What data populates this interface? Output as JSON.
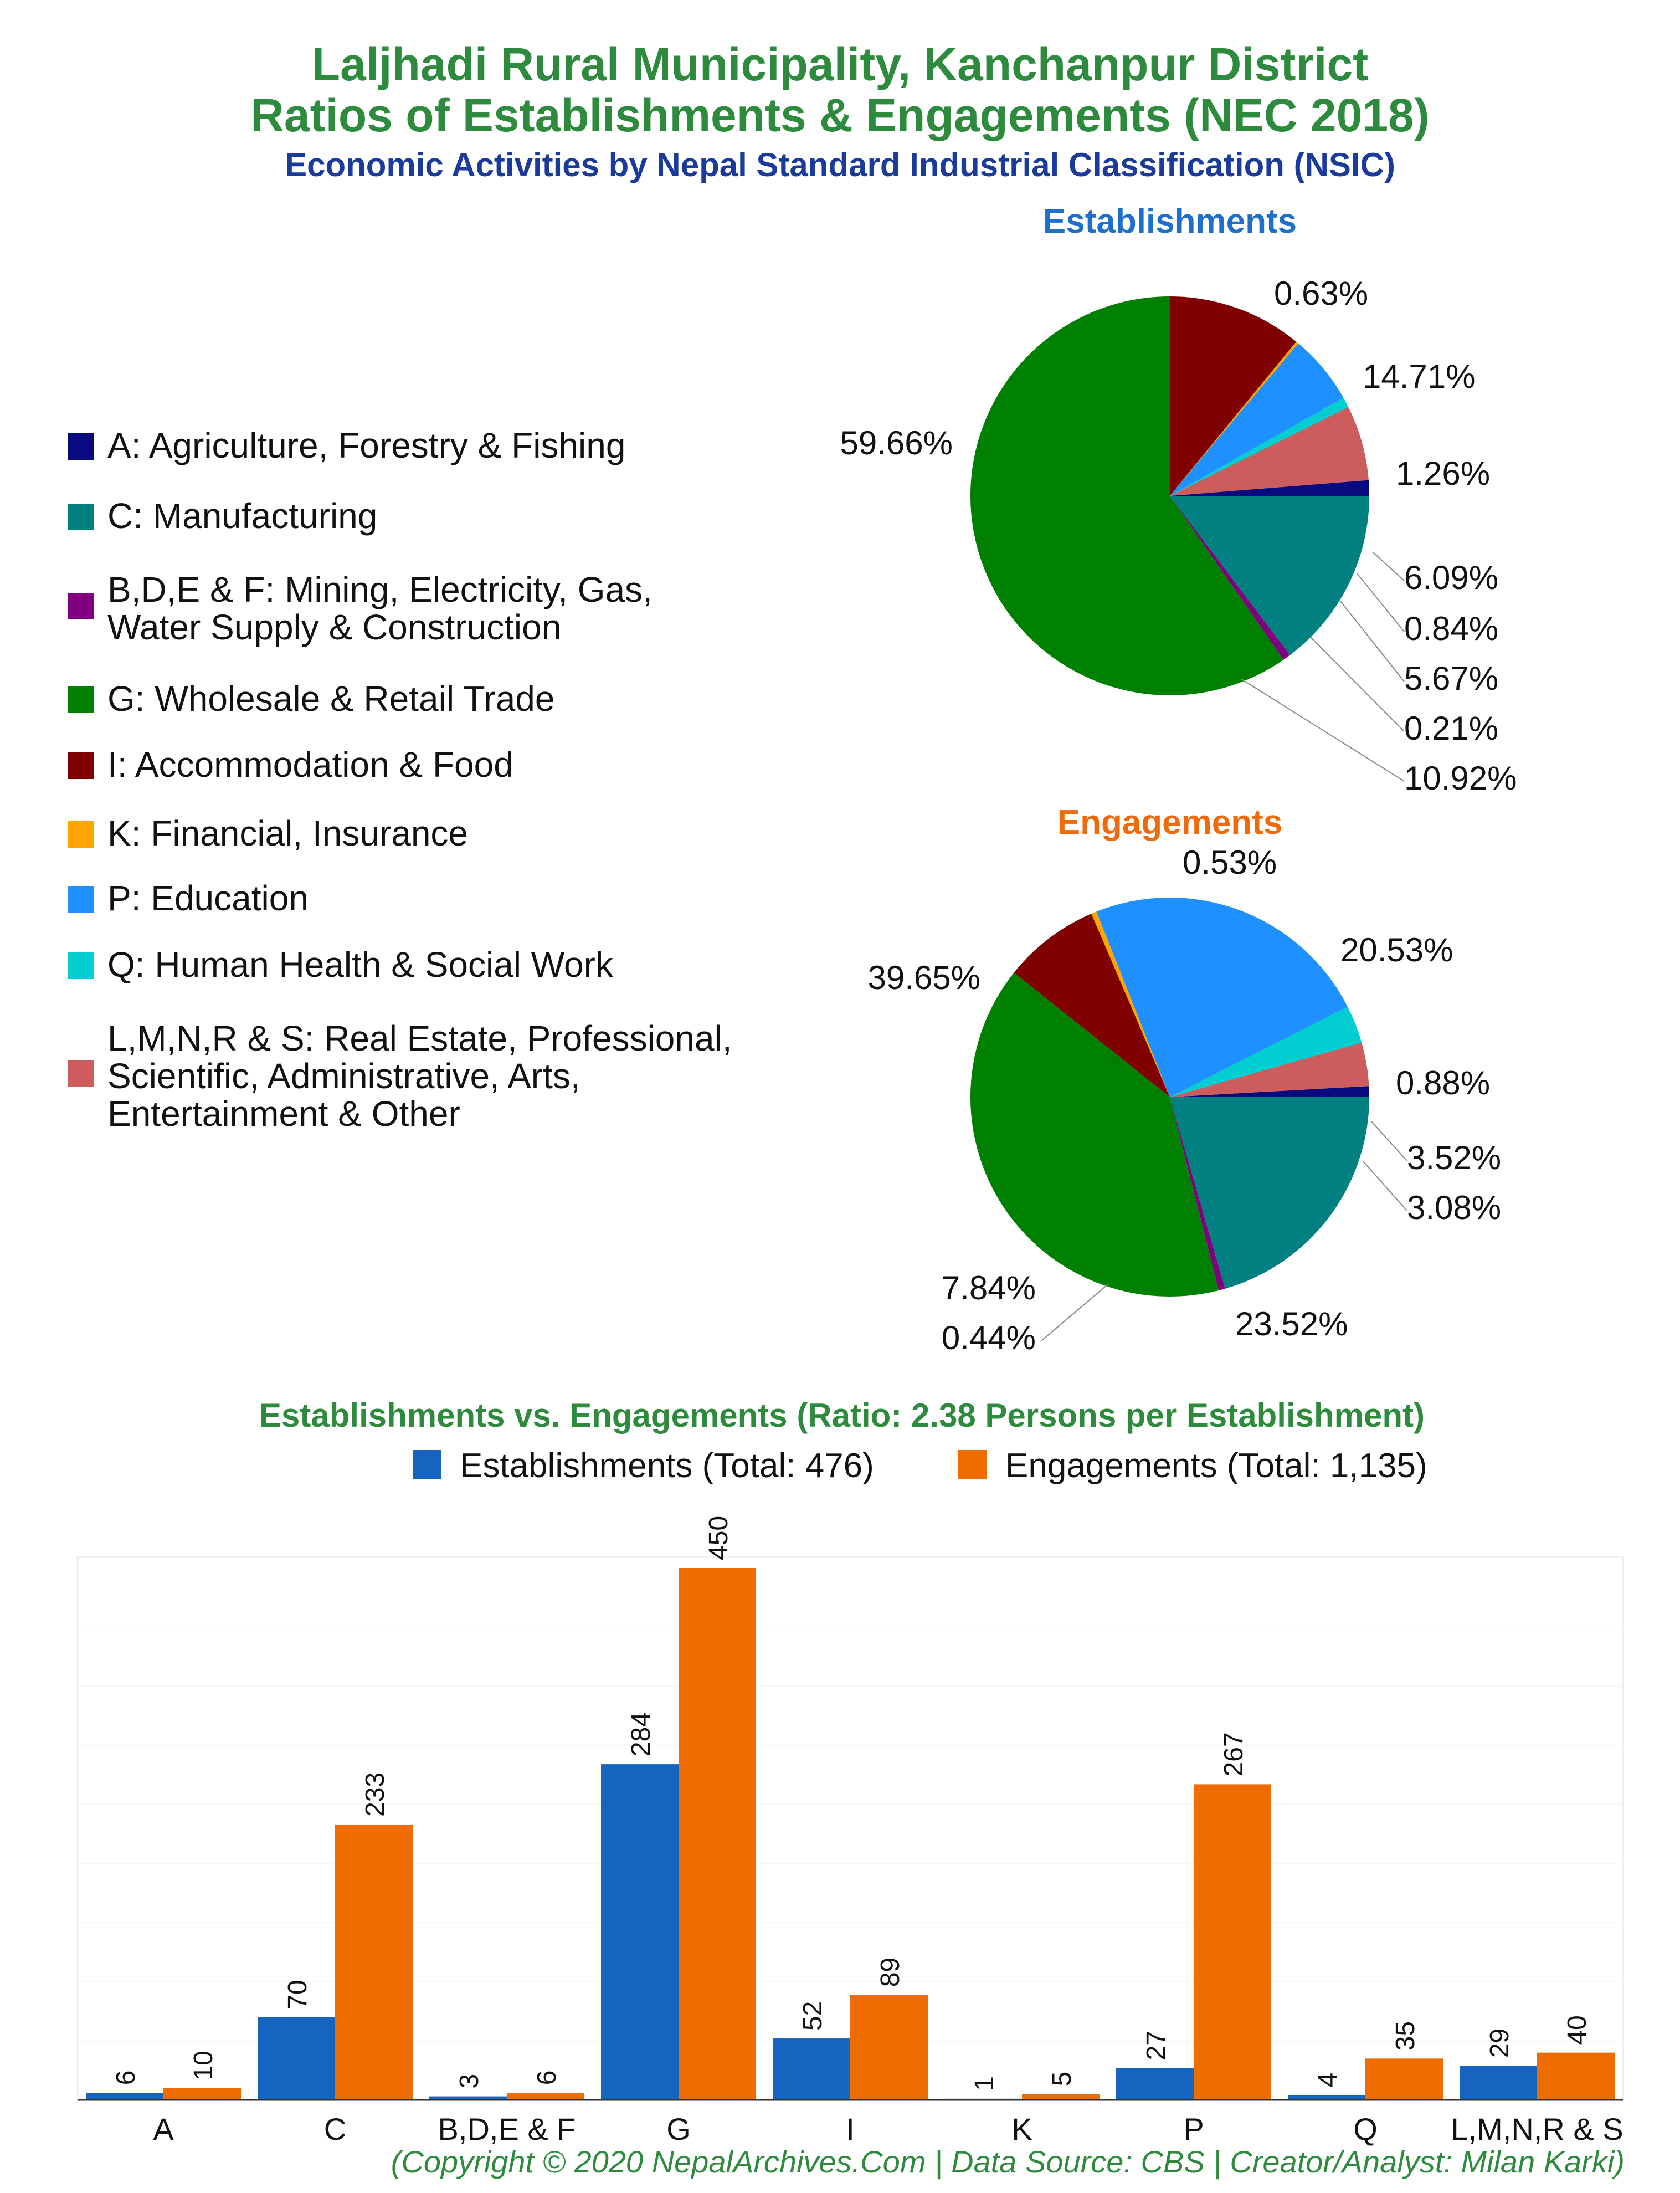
{
  "header": {
    "title_line1": "Laljhadi Rural Municipality, Kanchanpur District",
    "title_line2": "Ratios of Establishments & Engagements (NEC 2018)",
    "subtitle": "Economic Activities by Nepal Standard Industrial Classification (NSIC)"
  },
  "legend": [
    {
      "label": "A: Agriculture, Forestry & Fishing",
      "color": "#0a0a80"
    },
    {
      "label": "C: Manufacturing",
      "color": "#008080"
    },
    {
      "label": "B,D,E & F: Mining, Electricity, Gas,\nWater Supply & Construction",
      "color": "#800080"
    },
    {
      "label": "G: Wholesale & Retail Trade",
      "color": "#008000"
    },
    {
      "label": "I: Accommodation & Food",
      "color": "#800000"
    },
    {
      "label": "K: Financial, Insurance",
      "color": "#ffa500"
    },
    {
      "label": "P: Education",
      "color": "#1e90ff"
    },
    {
      "label": "Q: Human Health & Social Work",
      "color": "#00ced1"
    },
    {
      "label": "L,M,N,R & S: Real Estate, Professional,\nScientific, Administrative, Arts,\nEntertainment & Other",
      "color": "#cd5c5c"
    }
  ],
  "chart_data": [
    {
      "type": "pie",
      "title": "Establishments",
      "title_color": "#1e6fcc",
      "slices": [
        {
          "category": "A",
          "value": 1.26,
          "label": "1.26%"
        },
        {
          "category": "L,M,N,R & S",
          "value": 6.09,
          "label": "6.09%"
        },
        {
          "category": "Q",
          "value": 0.84,
          "label": "0.84%"
        },
        {
          "category": "P",
          "value": 5.67,
          "label": "5.67%"
        },
        {
          "category": "K",
          "value": 0.21,
          "label": "0.21%"
        },
        {
          "category": "I",
          "value": 10.92,
          "label": "10.92%"
        },
        {
          "category": "G",
          "value": 59.66,
          "label": "59.66%"
        },
        {
          "category": "B,D,E & F",
          "value": 0.63,
          "label": "0.63%"
        },
        {
          "category": "C",
          "value": 14.71,
          "label": "14.71%"
        }
      ]
    },
    {
      "type": "pie",
      "title": "Engagements",
      "title_color": "#ee6a0a",
      "slices": [
        {
          "category": "A",
          "value": 0.88,
          "label": "0.88%"
        },
        {
          "category": "L,M,N,R & S",
          "value": 3.52,
          "label": "3.52%"
        },
        {
          "category": "Q",
          "value": 3.08,
          "label": "3.08%"
        },
        {
          "category": "P",
          "value": 23.52,
          "label": "23.52%"
        },
        {
          "category": "K",
          "value": 0.44,
          "label": "0.44%"
        },
        {
          "category": "I",
          "value": 7.84,
          "label": "7.84%"
        },
        {
          "category": "G",
          "value": 39.65,
          "label": "39.65%"
        },
        {
          "category": "B,D,E & F",
          "value": 0.53,
          "label": "0.53%"
        },
        {
          "category": "C",
          "value": 20.53,
          "label": "20.53%"
        }
      ]
    },
    {
      "type": "bar",
      "title": "Establishments vs. Engagements (Ratio: 2.38 Persons per Establishment)",
      "categories": [
        "A",
        "C",
        "B,D,E & F",
        "G",
        "I",
        "K",
        "P",
        "Q",
        "L,M,N,R & S"
      ],
      "series": [
        {
          "name": "Establishments (Total: 476)",
          "color": "#1565c0",
          "values": [
            6,
            70,
            3,
            284,
            52,
            1,
            27,
            4,
            29
          ]
        },
        {
          "name": "Engagements (Total: 1,135)",
          "color": "#ef6c00",
          "values": [
            10,
            233,
            6,
            450,
            89,
            5,
            267,
            35,
            40
          ]
        }
      ],
      "ylim": [
        0,
        450
      ]
    }
  ],
  "footer": {
    "copyright": "(Copyright © 2020 NepalArchives.Com | Data Source: CBS | Creator/Analyst: Milan Karki)"
  }
}
